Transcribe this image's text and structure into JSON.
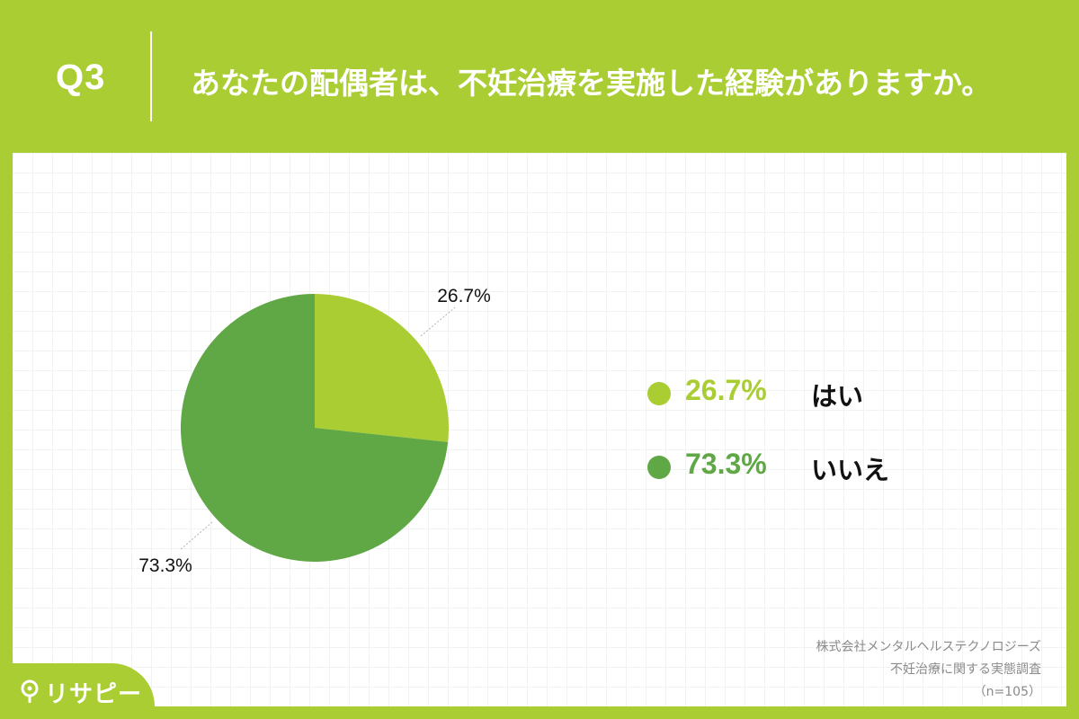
{
  "header": {
    "question_no": "Q3",
    "title": "あなたの配偶者は、不妊治療を実施した経験がありますか。"
  },
  "chart_data": {
    "type": "pie",
    "categories": [
      "はい",
      "いいえ"
    ],
    "values": [
      26.7,
      73.3
    ],
    "labels": [
      "26.7%",
      "73.3%"
    ],
    "colors": [
      "#aacd33",
      "#5fa845"
    ],
    "start_angle": "12 o'clock",
    "direction": "clockwise",
    "legend_position": "right"
  },
  "legend": [
    {
      "pct": "26.7%",
      "label": "はい",
      "color": "#aacd33"
    },
    {
      "pct": "73.3%",
      "label": "いいえ",
      "color": "#5fa845"
    }
  ],
  "source": {
    "line1": "株式会社メンタルヘルステクノロジーズ",
    "line2": "不妊治療に関する実態調査",
    "line3": "（n=105）"
  },
  "logo": {
    "text": "リサピー"
  },
  "colors": {
    "background": "#aacd33",
    "panel": "#ffffff",
    "accent_light": "#aacd33",
    "accent_dark": "#5fa845"
  }
}
